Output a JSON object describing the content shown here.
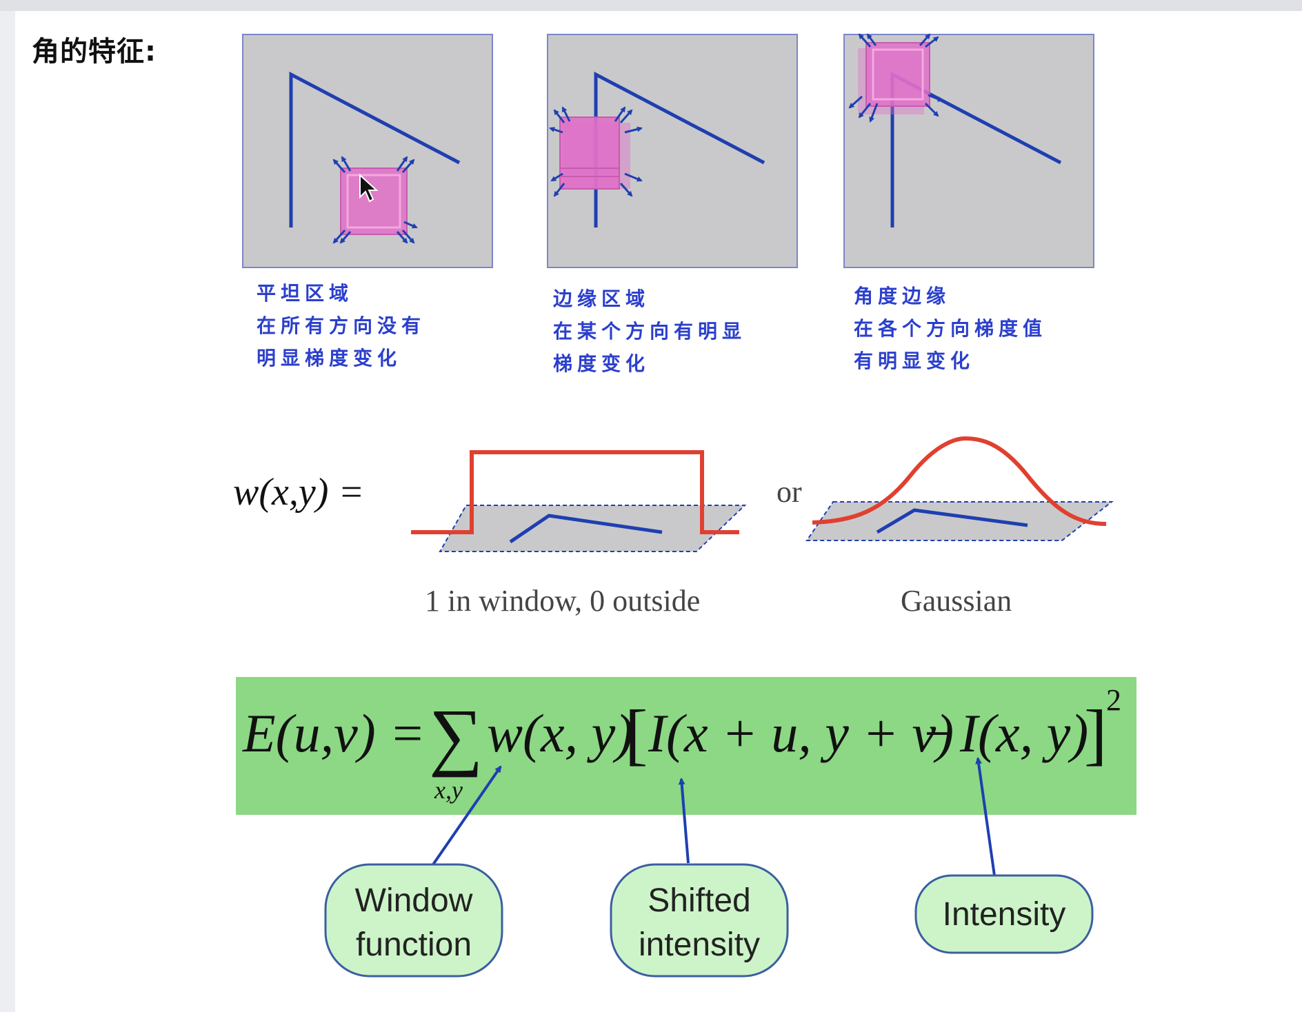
{
  "heading": "角的特征:",
  "panels": [
    {
      "caption": [
        "平坦区域",
        "在所有方向没有",
        "明显梯度变化"
      ]
    },
    {
      "caption": [
        "边缘区域",
        "在某个方向有明显",
        "梯度变化"
      ]
    },
    {
      "caption": [
        "角度边缘",
        "在各个方向梯度值",
        "有明显变化"
      ]
    }
  ],
  "window_function": {
    "lhs": "w(x,y) =",
    "or": "or",
    "box_label": "1 in window, 0 outside",
    "gaussian_label": "Gaussian"
  },
  "equation": {
    "lhs": "E(u,v) =",
    "sum": "∑",
    "sum_sub": "x,y",
    "w": "w(x, y)",
    "lbracket": "[",
    "shifted": "I(x + u, y + v)",
    "minus": "−",
    "intensity": "I(x, y)",
    "rbracket": "]",
    "exponent": "2",
    "background_color": "#8cd884"
  },
  "bubbles": [
    {
      "line1": "Window",
      "line2": "function"
    },
    {
      "line1": "Shifted",
      "line2": "intensity"
    },
    {
      "line1": "Intensity"
    }
  ],
  "colors": {
    "panel_bg": "#c9c9cb",
    "line_blue": "#1f3fb0",
    "window_pink": "#e070c8",
    "curve_red": "#e04030",
    "caption_blue": "#2b3fcc",
    "bubble_fill": "#cdf4c8"
  }
}
